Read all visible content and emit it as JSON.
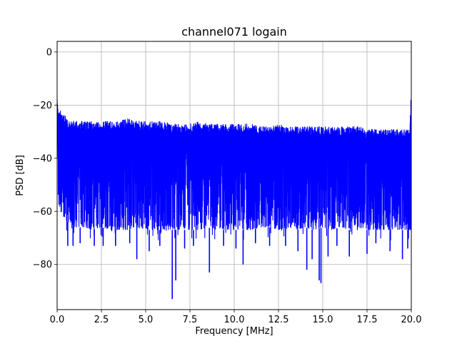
{
  "chart_data": {
    "type": "line",
    "title": "channel071 logain",
    "xlabel": "Frequency [MHz]",
    "ylabel": "PSD [dB]",
    "xlim": [
      0,
      20
    ],
    "ylim": [
      -97,
      4
    ],
    "xticks": [
      0,
      2.5,
      5,
      7.5,
      10,
      12.5,
      15,
      17.5,
      20
    ],
    "xtick_labels": [
      "0.0",
      "2.5",
      "5.0",
      "7.5",
      "10.0",
      "12.5",
      "15.0",
      "17.5",
      "20.0"
    ],
    "yticks": [
      0,
      -20,
      -40,
      -60,
      -80
    ],
    "ytick_labels": [
      "0",
      "−20",
      "−40",
      "−60",
      "−80"
    ],
    "grid": true,
    "line_color": "#0000ff",
    "series": [
      {
        "envelope_x": [
          0,
          0.1,
          0.3,
          0.6,
          1,
          1.5,
          2,
          2.5,
          3,
          3.5,
          4,
          4.5,
          5,
          5.5,
          6,
          6.5,
          7,
          7.5,
          8,
          8.5,
          9,
          9.5,
          10,
          10.5,
          11,
          11.5,
          12,
          12.5,
          13,
          13.5,
          14,
          14.5,
          15,
          15.5,
          16,
          16.5,
          17,
          17.5,
          18,
          18.5,
          19,
          19.5,
          19.9,
          20
        ],
        "upper_envelope": [
          -18,
          -21,
          -23,
          -25,
          -26,
          -26,
          -26,
          -26,
          -26,
          -26,
          -25,
          -26,
          -26,
          -26,
          -26,
          -27,
          -27,
          -27,
          -26,
          -27,
          -27,
          -27,
          -27,
          -27,
          -27,
          -28,
          -28,
          -27,
          -28,
          -28,
          -28,
          -28,
          -28,
          -28,
          -28,
          -28,
          -28,
          -29,
          -29,
          -29,
          -29,
          -29,
          -29,
          -18
        ],
        "lower_envelope": [
          -52,
          -58,
          -62,
          -64,
          -66,
          -66,
          -67,
          -66,
          -67,
          -67,
          -67,
          -66,
          -67,
          -67,
          -67,
          -67,
          -67,
          -67,
          -67,
          -66,
          -67,
          -67,
          -67,
          -67,
          -67,
          -66,
          -66,
          -67,
          -66,
          -67,
          -66,
          -67,
          -66,
          -67,
          -66,
          -67,
          -66,
          -67,
          -67,
          -67,
          -67,
          -67,
          -67,
          -67
        ],
        "dips": [
          {
            "x": 0.6,
            "y": -73
          },
          {
            "x": 0.9,
            "y": -73
          },
          {
            "x": 1.3,
            "y": -72
          },
          {
            "x": 2.1,
            "y": -73
          },
          {
            "x": 2.6,
            "y": -73
          },
          {
            "x": 3.3,
            "y": -73
          },
          {
            "x": 4.1,
            "y": -72
          },
          {
            "x": 4.5,
            "y": -78
          },
          {
            "x": 5.2,
            "y": -75
          },
          {
            "x": 5.8,
            "y": -73
          },
          {
            "x": 6.5,
            "y": -93
          },
          {
            "x": 6.7,
            "y": -86
          },
          {
            "x": 7.2,
            "y": -74
          },
          {
            "x": 7.7,
            "y": -73
          },
          {
            "x": 8.6,
            "y": -83
          },
          {
            "x": 9.4,
            "y": -73
          },
          {
            "x": 10.1,
            "y": -74
          },
          {
            "x": 10.5,
            "y": -80
          },
          {
            "x": 11.2,
            "y": -72
          },
          {
            "x": 12.0,
            "y": -73
          },
          {
            "x": 12.9,
            "y": -73
          },
          {
            "x": 13.6,
            "y": -75
          },
          {
            "x": 14.1,
            "y": -82
          },
          {
            "x": 14.4,
            "y": -78
          },
          {
            "x": 14.8,
            "y": -86
          },
          {
            "x": 14.9,
            "y": -87
          },
          {
            "x": 15.3,
            "y": -77
          },
          {
            "x": 15.8,
            "y": -73
          },
          {
            "x": 16.5,
            "y": -77
          },
          {
            "x": 17.5,
            "y": -76
          },
          {
            "x": 18.0,
            "y": -72
          },
          {
            "x": 18.8,
            "y": -75
          },
          {
            "x": 19.5,
            "y": -78
          },
          {
            "x": 19.8,
            "y": -74
          }
        ]
      }
    ]
  }
}
